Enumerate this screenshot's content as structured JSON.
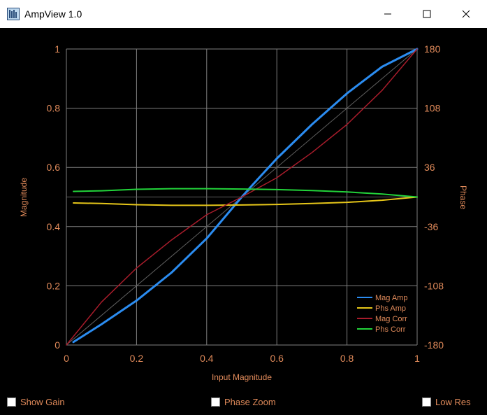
{
  "window": {
    "title": "AmpView 1.0",
    "icon": "ampview-app-icon"
  },
  "controls": {
    "minimize_icon": "minimize-icon",
    "maximize_icon": "maximize-icon",
    "close_icon": "close-icon"
  },
  "checkboxes": [
    {
      "label": "Show Gain",
      "checked": false
    },
    {
      "label": "Phase Zoom",
      "checked": false
    },
    {
      "label": "Low Res",
      "checked": false
    }
  ],
  "chart_data": {
    "type": "line",
    "xlabel": "Input Magnitude",
    "ylabel": "Magnitude",
    "y2label": "Phase",
    "xlim": [
      0,
      1
    ],
    "ylim": [
      0,
      1
    ],
    "y2lim": [
      -180,
      180
    ],
    "xticks": [
      "0",
      "0.2",
      "0.4",
      "0.6",
      "0.8",
      "1"
    ],
    "yticks": [
      "0",
      "0.2",
      "0.4",
      "0.6",
      "0.8",
      "1"
    ],
    "y2ticks": [
      "-180",
      "-108",
      "-36",
      "36",
      "108",
      "180"
    ],
    "grid": true,
    "legend_position": "bottom-right",
    "colors": {
      "axis_text": "#e08a5a",
      "grid": "#808080",
      "reference": "#606060"
    },
    "series": [
      {
        "name": "Mag Amp",
        "color": "#2b8cf0",
        "x": [
          0.02,
          0.1,
          0.2,
          0.3,
          0.4,
          0.5,
          0.53,
          0.6,
          0.7,
          0.8,
          0.9,
          1.0
        ],
        "y": [
          0.01,
          0.07,
          0.15,
          0.245,
          0.36,
          0.5,
          0.54,
          0.63,
          0.745,
          0.85,
          0.94,
          1.0
        ]
      },
      {
        "name": "Phs Amp",
        "color": "#e6c619",
        "x": [
          0.02,
          0.1,
          0.2,
          0.3,
          0.4,
          0.5,
          0.6,
          0.7,
          0.8,
          0.9,
          1.0
        ],
        "y": [
          0.48,
          0.478,
          0.474,
          0.472,
          0.472,
          0.473,
          0.475,
          0.478,
          0.482,
          0.489,
          0.5
        ]
      },
      {
        "name": "Mag Corr",
        "color": "#a81c2b",
        "x": [
          0.0,
          0.1,
          0.2,
          0.3,
          0.4,
          0.5,
          0.6,
          0.7,
          0.8,
          0.9,
          1.0
        ],
        "y": [
          0.0,
          0.145,
          0.26,
          0.355,
          0.44,
          0.5,
          0.565,
          0.65,
          0.745,
          0.86,
          1.0
        ]
      },
      {
        "name": "Phs Corr",
        "color": "#22d33a",
        "x": [
          0.02,
          0.1,
          0.2,
          0.3,
          0.4,
          0.5,
          0.6,
          0.7,
          0.8,
          0.9,
          1.0
        ],
        "y": [
          0.519,
          0.521,
          0.526,
          0.528,
          0.528,
          0.527,
          0.525,
          0.522,
          0.517,
          0.51,
          0.5
        ]
      }
    ]
  }
}
